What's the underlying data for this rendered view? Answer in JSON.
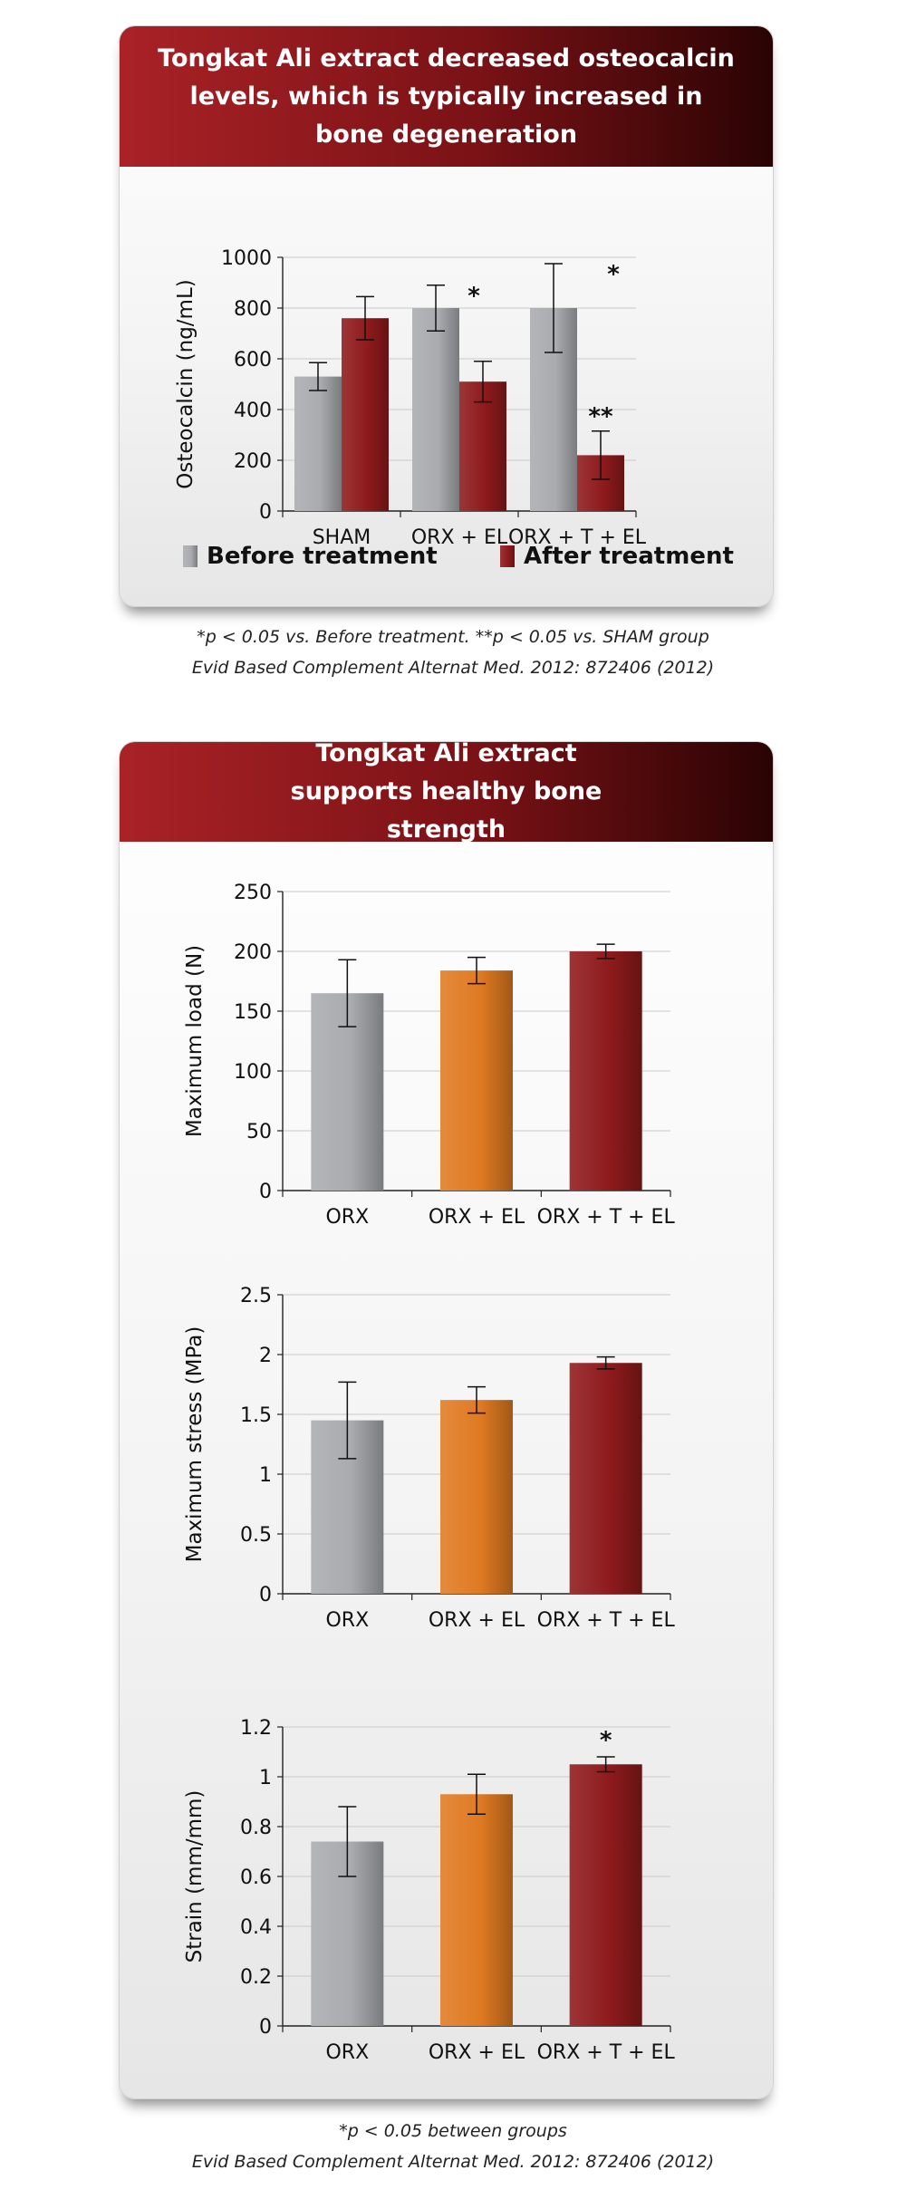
{
  "panel1": {
    "title": "Tongkat Ali extract decreased osteocalcin levels, which is typically increased in bone degeneration",
    "footnote": "*p < 0.05 vs. Before treatment. **p < 0.05 vs. SHAM group",
    "citation": "Evid Based Complement Alternat Med. 2012: 872406 (2012)"
  },
  "panel2": {
    "title": "Tongkat Ali extract supports healthy bone strength",
    "footnote": "*p < 0.05 between groups",
    "citation": "Evid Based Complement Alternat Med. 2012: 872406 (2012)"
  },
  "colors": {
    "before": "#a9abaf",
    "after": "#8e1a1c",
    "orx": "#a9abaf",
    "orx_el": "#e07a22",
    "orx_t_el": "#8e1a1c"
  },
  "chart_data": [
    {
      "type": "bar",
      "categories": [
        "SHAM",
        "ORX + EL",
        "ORX + T + EL"
      ],
      "series": [
        {
          "name": "Before treatment",
          "values": [
            530,
            800,
            800
          ],
          "errors": [
            55,
            90,
            175
          ],
          "marks": [
            "",
            "*",
            "*"
          ]
        },
        {
          "name": "After treatment",
          "values": [
            760,
            510,
            220
          ],
          "errors": [
            85,
            80,
            95
          ],
          "marks": [
            "",
            "",
            "**"
          ]
        }
      ],
      "ylabel": "Osteocalcin (ng/mL)",
      "ylim": [
        0,
        1000
      ],
      "yticks": [
        "0",
        "200",
        "400",
        "600",
        "800",
        "1000"
      ],
      "grid": true,
      "legend": "bottom"
    },
    {
      "type": "bar",
      "categories": [
        "ORX",
        "ORX + EL",
        "ORX + T + EL"
      ],
      "values": [
        165,
        184,
        200
      ],
      "errors": [
        28,
        11,
        6
      ],
      "marks": [
        "",
        "",
        ""
      ],
      "ylabel": "Maximum load (N)",
      "ylim": [
        0,
        250
      ],
      "yticks": [
        "0",
        "50",
        "100",
        "150",
        "200",
        "250"
      ],
      "grid": true
    },
    {
      "type": "bar",
      "categories": [
        "ORX",
        "ORX + EL",
        "ORX + T + EL"
      ],
      "values": [
        1.45,
        1.62,
        1.93
      ],
      "errors": [
        0.32,
        0.11,
        0.05
      ],
      "marks": [
        "",
        "",
        ""
      ],
      "ylabel": "Maximum stress (MPa)",
      "ylim": [
        0,
        2.5
      ],
      "yticks": [
        "0",
        "0.5",
        "1",
        "1.5",
        "2",
        "2.5"
      ],
      "grid": true
    },
    {
      "type": "bar",
      "categories": [
        "ORX",
        "ORX + EL",
        "ORX + T + EL"
      ],
      "values": [
        0.74,
        0.93,
        1.05
      ],
      "errors": [
        0.14,
        0.08,
        0.03
      ],
      "marks": [
        "",
        "",
        "*"
      ],
      "ylabel": "Strain (mm/mm)",
      "ylim": [
        0,
        1.2
      ],
      "yticks": [
        "0",
        "0.2",
        "0.4",
        "0.6",
        "0.8",
        "1",
        "1.2"
      ],
      "grid": true
    }
  ]
}
